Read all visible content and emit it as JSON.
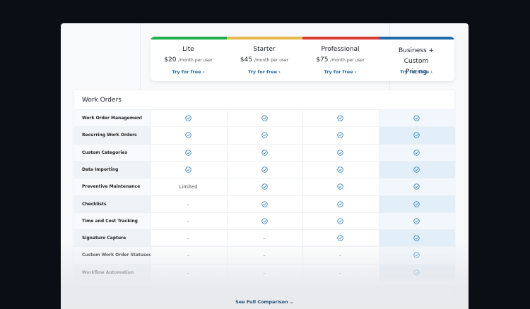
{
  "plans": [
    {
      "name": "Lite",
      "price": "$20",
      "price_note": "/month per user",
      "cta": "Try for free",
      "color": "#1fae4b"
    },
    {
      "name": "Starter",
      "price": "$45",
      "price_note": "/month per user",
      "cta": "Try for free",
      "color": "#e6b84c"
    },
    {
      "name": "Professional",
      "price": "$75",
      "price_note": "/month per user",
      "cta": "Try for free",
      "color": "#d83a2f"
    },
    {
      "name": "Business + Custom Pricing",
      "cta": "Try for free",
      "color": "#1f6aa8"
    }
  ],
  "section": {
    "title": "Work Orders",
    "rows": [
      {
        "feature": "Work Order Management",
        "cells": [
          true,
          true,
          true,
          true
        ]
      },
      {
        "feature": "Recurring Work Orders",
        "cells": [
          true,
          true,
          true,
          true
        ]
      },
      {
        "feature": "Custom Categories",
        "cells": [
          true,
          true,
          true,
          true
        ]
      },
      {
        "feature": "Data Importing",
        "cells": [
          true,
          true,
          true,
          true
        ]
      },
      {
        "feature": "Preventive Maintenance",
        "cells": [
          "Limited",
          true,
          true,
          true
        ]
      },
      {
        "feature": "Checklists",
        "cells": [
          "–",
          true,
          true,
          true
        ]
      },
      {
        "feature": "Time and Cost Tracking",
        "cells": [
          "–",
          true,
          true,
          true
        ]
      },
      {
        "feature": "Signature Capture",
        "cells": [
          "–",
          "–",
          true,
          true
        ]
      },
      {
        "feature": "Custom Work Order Statuses",
        "cells": [
          "–",
          "–",
          "–",
          true
        ]
      },
      {
        "feature": "Workflow Automation",
        "cells": [
          "–",
          "–",
          "–",
          true
        ]
      }
    ]
  },
  "footer": {
    "link": "See Full Comparison"
  }
}
